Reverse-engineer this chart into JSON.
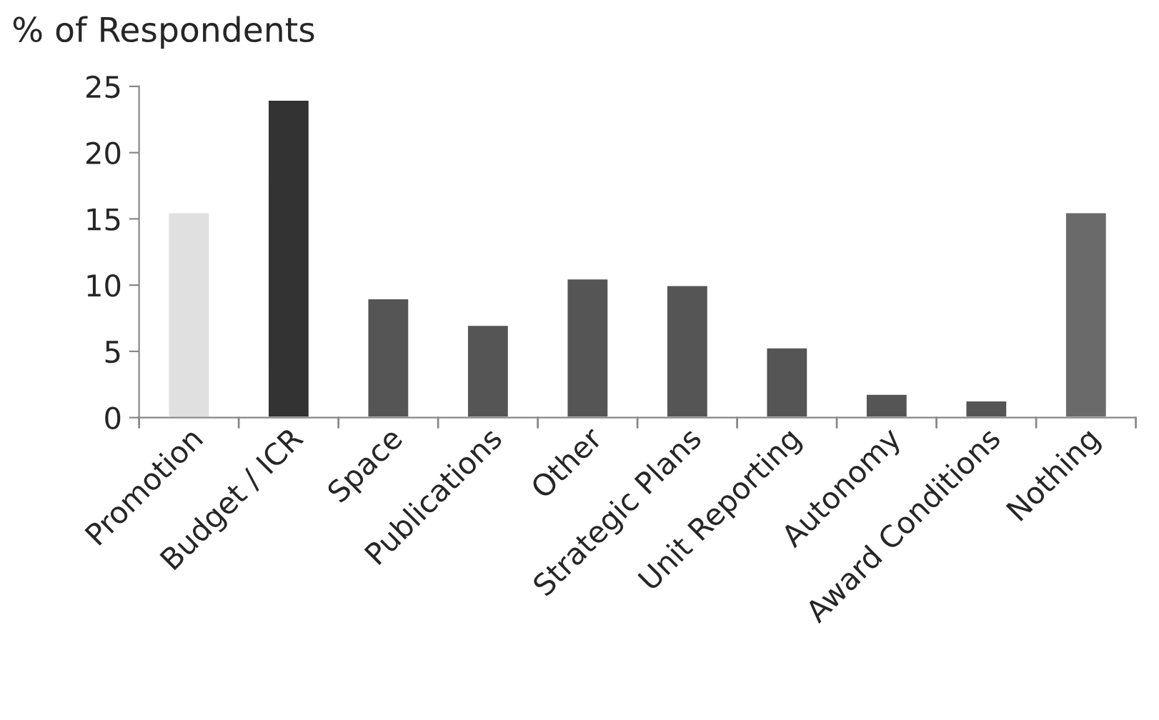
{
  "chart_data": {
    "type": "bar",
    "title": "% of Respondents",
    "categories": [
      "Promotion",
      "Budget / ICR",
      "Space",
      "Publications",
      "Other",
      "Strategic Plans",
      "Unit Reporting",
      "Autonomy",
      "Award Conditions",
      "Nothing"
    ],
    "values": [
      15.5,
      24.0,
      9.0,
      7.0,
      10.5,
      10.0,
      5.3,
      1.8,
      1.3,
      15.5
    ],
    "colors": [
      "#e0e0e0",
      "#333333",
      "#555555",
      "#555555",
      "#555555",
      "#555555",
      "#555555",
      "#555555",
      "#555555",
      "#6a6a6a"
    ],
    "ylim": [
      0,
      25
    ],
    "yticks": [
      0,
      5,
      10,
      15,
      20,
      25
    ],
    "grid": false,
    "legend": false
  }
}
